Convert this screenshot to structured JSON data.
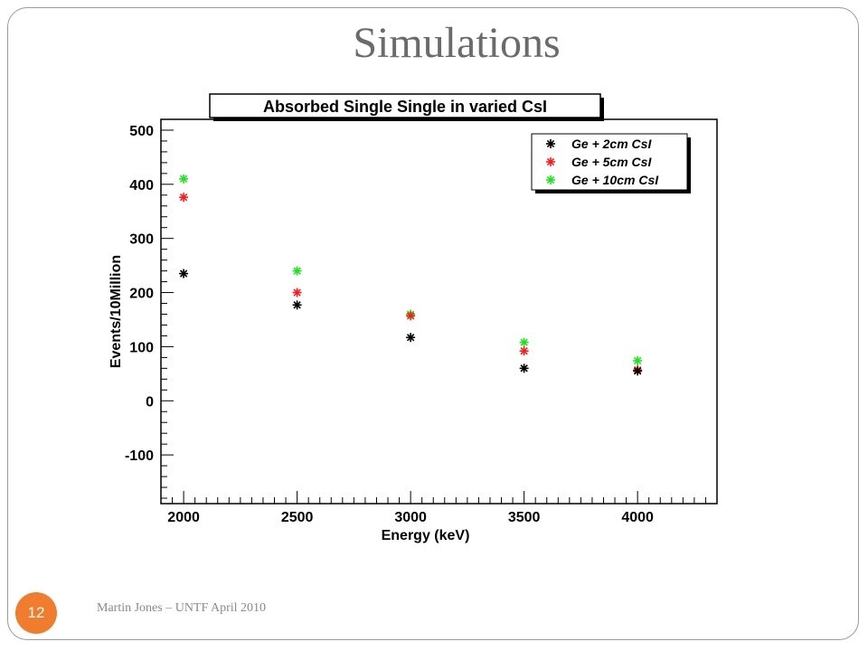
{
  "slide": {
    "title": "Simulations",
    "footer": "Martin Jones – UNTF April 2010",
    "page_number": "12"
  },
  "colors": {
    "badge": "#f07c2e",
    "series_black": "#000000",
    "series_red": "#ff1a1a",
    "series_green": "#19e619"
  },
  "chart_data": {
    "type": "scatter",
    "title": "Absorbed Single Single in varied CsI",
    "xlabel": "Energy (keV)",
    "ylabel": "Events/10Million",
    "xlim": [
      1900,
      4350
    ],
    "ylim": [
      -190,
      520
    ],
    "x_ticks": [
      2000,
      2500,
      3000,
      3500,
      4000
    ],
    "y_ticks": [
      -100,
      0,
      100,
      200,
      300,
      400,
      500
    ],
    "legend_position": "top-right",
    "grid": false,
    "marker": "asterisk",
    "series": [
      {
        "name": "Ge + 2cm CsI",
        "color": "#000000",
        "x": [
          2000,
          2500,
          3000,
          3500,
          4000
        ],
        "y": [
          235,
          177,
          117,
          60,
          55
        ]
      },
      {
        "name": "Ge + 5cm CsI",
        "color": "#ff1a1a",
        "x": [
          2000,
          2500,
          3000,
          3500,
          4000
        ],
        "y": [
          376,
          200,
          157,
          92,
          57
        ]
      },
      {
        "name": "Ge + 10cm CsI",
        "color": "#19e619",
        "x": [
          2000,
          2500,
          3000,
          3500,
          4000
        ],
        "y": [
          410,
          240,
          160,
          108,
          74
        ]
      }
    ]
  }
}
